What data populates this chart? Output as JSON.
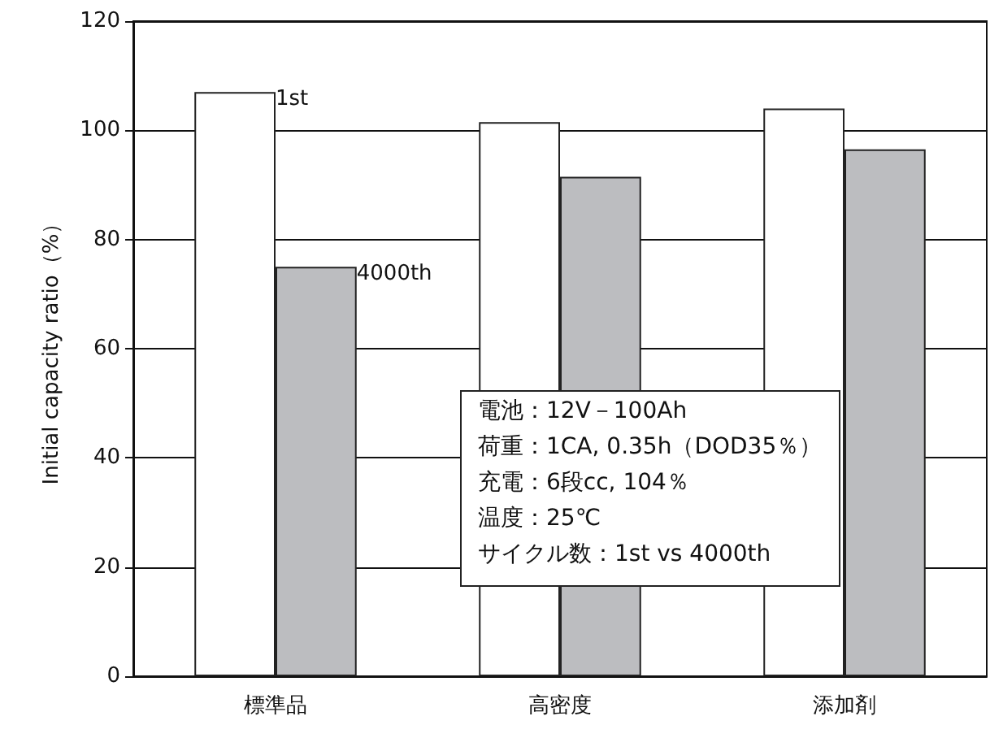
{
  "chart_data": {
    "type": "bar",
    "ylabel": "Initial capacity ratio（%）",
    "categories": [
      "標準品",
      "高密度",
      "添加剤"
    ],
    "series": [
      {
        "name": "1st",
        "color": "#ffffff",
        "values": [
          107,
          101.5,
          104
        ]
      },
      {
        "name": "4000th",
        "color": "#bcbdc0",
        "values": [
          75,
          91.5,
          96.5
        ]
      }
    ],
    "ylim": [
      0,
      120
    ],
    "yticks": [
      0,
      20,
      40,
      60,
      80,
      100,
      120
    ],
    "grid": "y",
    "legend": false,
    "annotations": [
      "電池：12V－100Ah",
      "荷重：1CA, 0.35h（DOD35％）",
      "充電：6段cc, 104％",
      "温度：25℃",
      "サイクル数：1st vs 4000th"
    ]
  }
}
